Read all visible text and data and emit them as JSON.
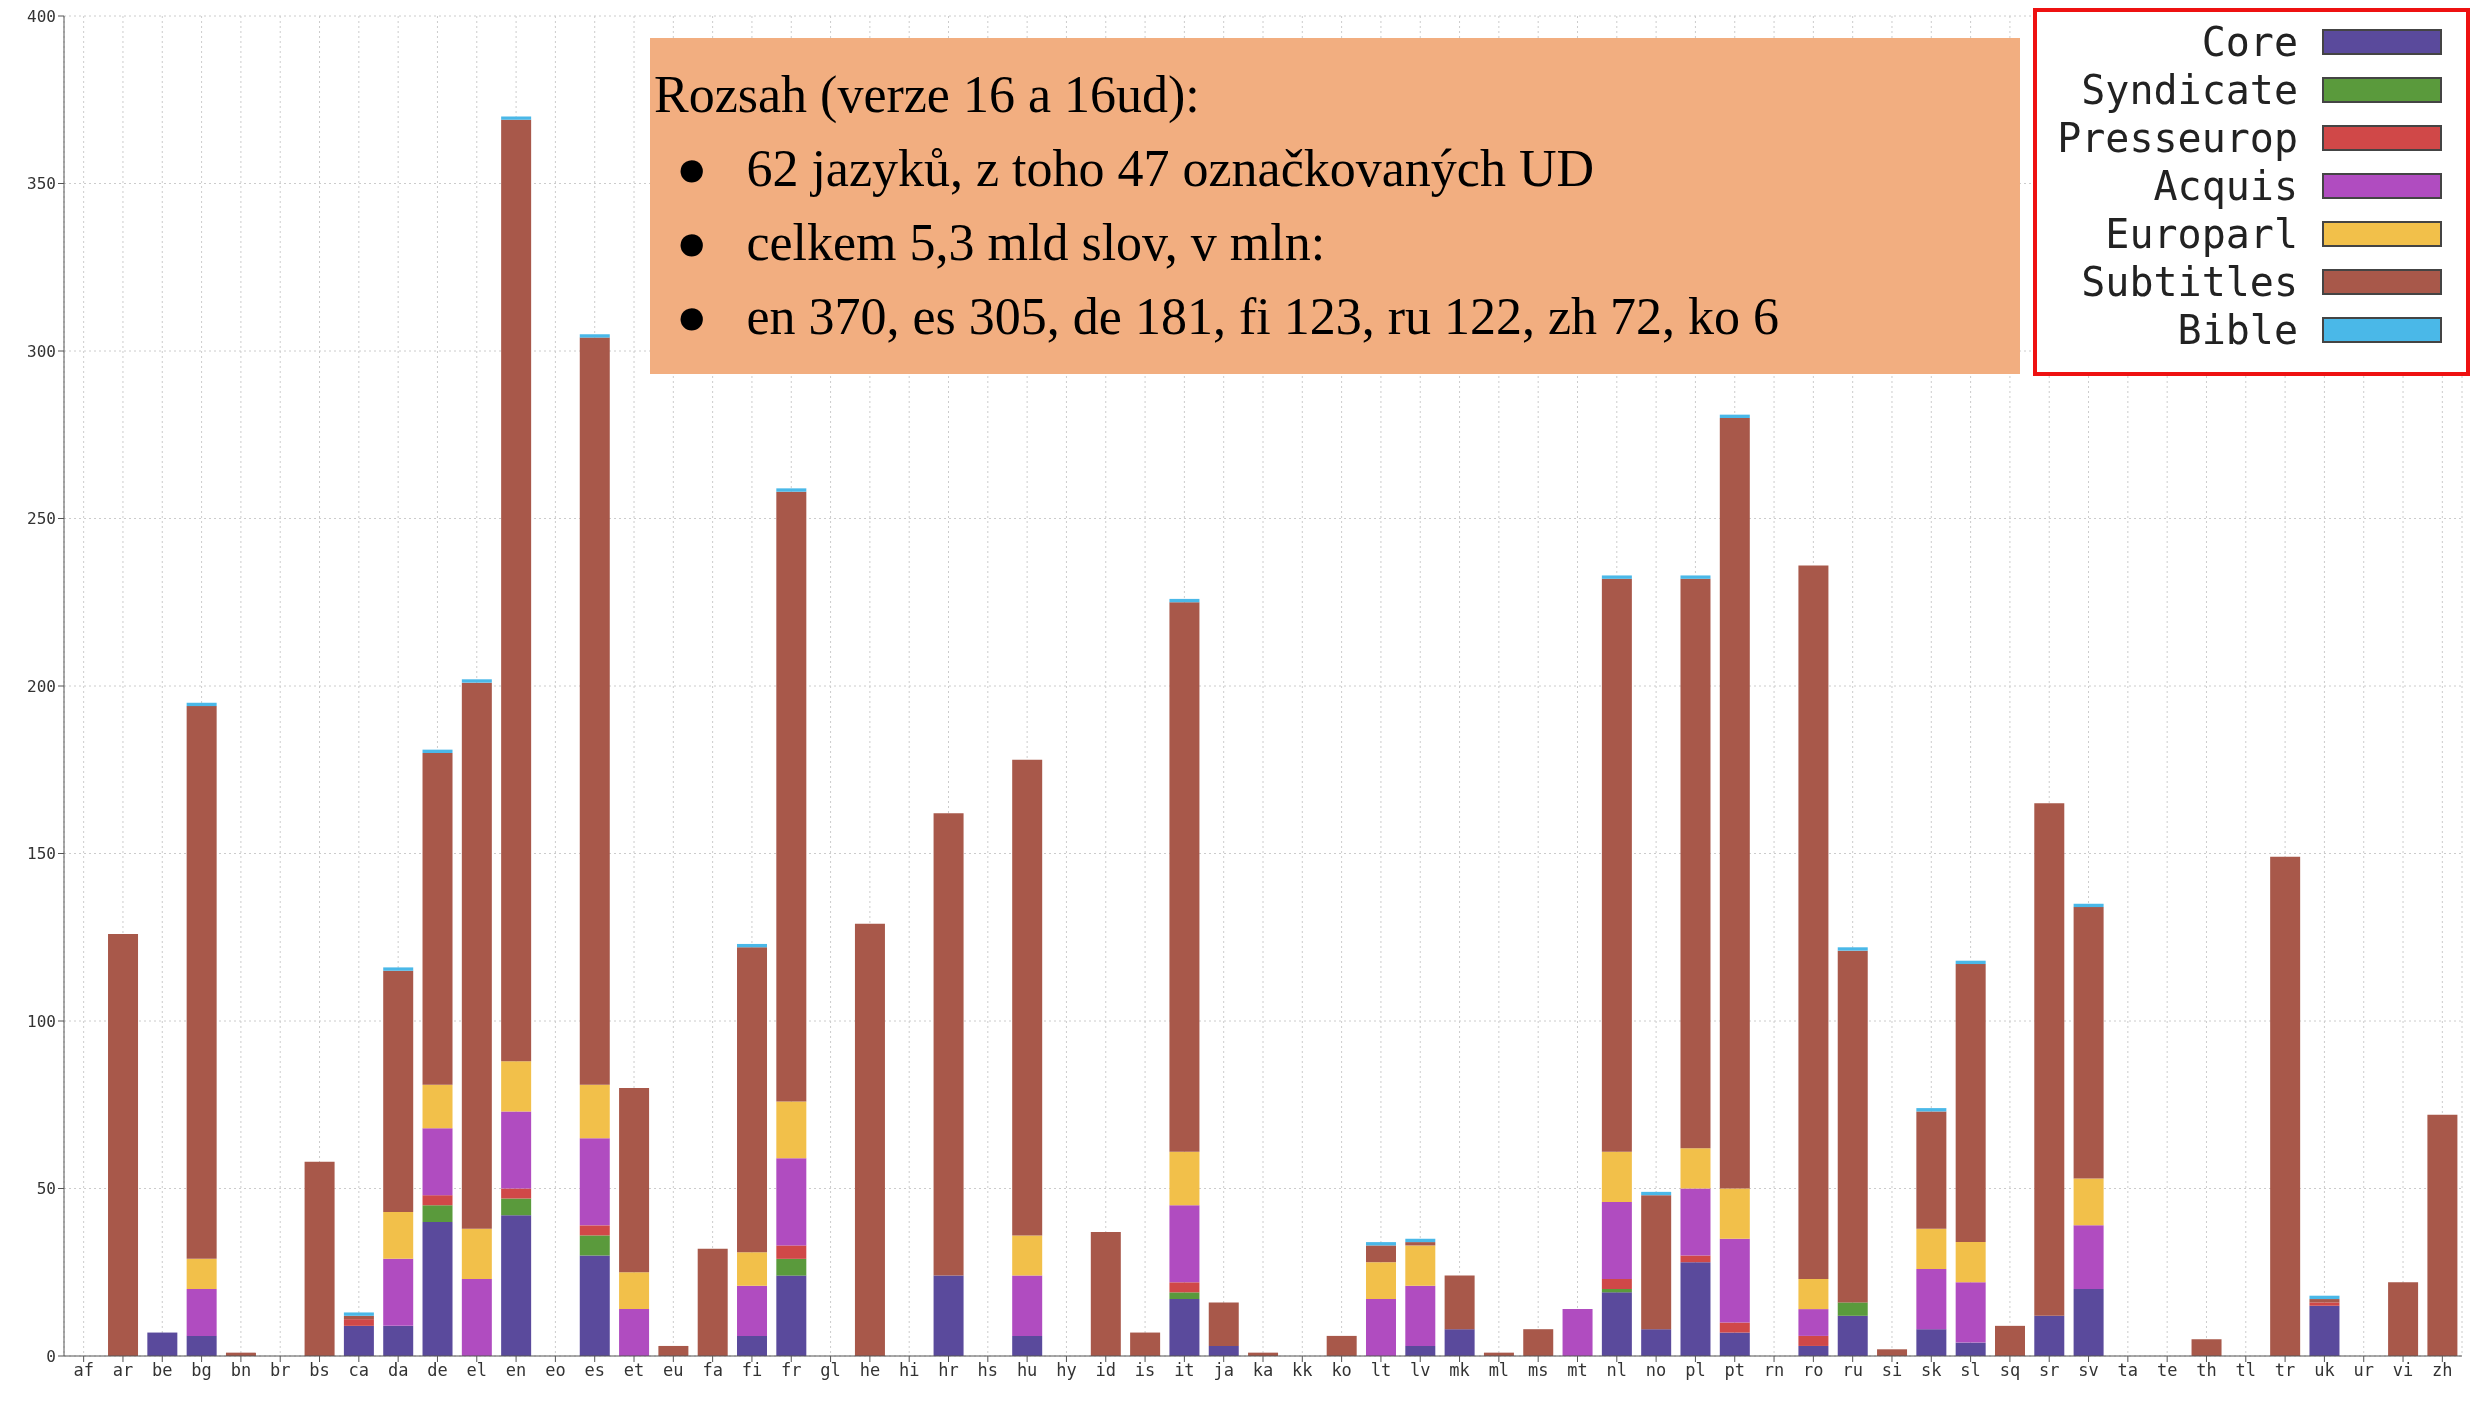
{
  "chart_data": {
    "type": "bar",
    "stacked": true,
    "categories": [
      "af",
      "ar",
      "be",
      "bg",
      "bn",
      "br",
      "bs",
      "ca",
      "da",
      "de",
      "el",
      "en",
      "eo",
      "es",
      "et",
      "eu",
      "fa",
      "fi",
      "fr",
      "gl",
      "he",
      "hi",
      "hr",
      "hs",
      "hu",
      "hy",
      "id",
      "is",
      "it",
      "ja",
      "ka",
      "kk",
      "ko",
      "lt",
      "lv",
      "mk",
      "ml",
      "ms",
      "mt",
      "nl",
      "no",
      "pl",
      "pt",
      "rn",
      "ro",
      "ru",
      "si",
      "sk",
      "sl",
      "sq",
      "sr",
      "sv",
      "ta",
      "te",
      "th",
      "tl",
      "tr",
      "uk",
      "ur",
      "vi",
      "zh"
    ],
    "series": [
      {
        "name": "Core",
        "color": "#5a4a9c",
        "values": [
          0,
          0,
          7,
          6,
          0,
          0,
          0,
          9,
          9,
          40,
          0,
          42,
          0,
          30,
          0,
          0,
          0,
          6,
          24,
          0,
          0,
          0,
          24,
          0,
          6,
          0,
          0,
          0,
          17,
          3,
          0,
          0,
          0,
          0,
          3,
          8,
          0,
          0,
          0,
          19,
          8,
          28,
          7,
          0,
          3,
          12,
          0,
          8,
          4,
          0,
          12,
          20,
          0,
          0,
          0,
          0,
          0,
          15,
          0,
          0,
          0
        ]
      },
      {
        "name": "Syndicate",
        "color": "#5a9a3c",
        "values": [
          0,
          0,
          0,
          0,
          0,
          0,
          0,
          0,
          0,
          5,
          0,
          5,
          0,
          6,
          0,
          0,
          0,
          0,
          5,
          0,
          0,
          0,
          0,
          0,
          0,
          0,
          0,
          0,
          2,
          0,
          0,
          0,
          0,
          0,
          0,
          0,
          0,
          0,
          0,
          1,
          0,
          0,
          0,
          0,
          0,
          4,
          0,
          0,
          0,
          0,
          0,
          0,
          0,
          0,
          0,
          0,
          0,
          0,
          0,
          0,
          0
        ]
      },
      {
        "name": "Presseurop",
        "color": "#d04848",
        "values": [
          0,
          0,
          0,
          0,
          0,
          0,
          0,
          2,
          0,
          3,
          0,
          3,
          0,
          3,
          0,
          0,
          0,
          0,
          4,
          0,
          0,
          0,
          0,
          0,
          0,
          0,
          0,
          0,
          3,
          0,
          0,
          0,
          0,
          0,
          0,
          0,
          0,
          0,
          0,
          3,
          0,
          2,
          3,
          0,
          3,
          0,
          0,
          0,
          0,
          0,
          0,
          0,
          0,
          0,
          0,
          0,
          0,
          1,
          0,
          0,
          0
        ]
      },
      {
        "name": "Acquis",
        "color": "#b04cc0",
        "values": [
          0,
          0,
          0,
          14,
          0,
          0,
          0,
          0,
          20,
          20,
          23,
          23,
          0,
          26,
          14,
          0,
          0,
          15,
          26,
          0,
          0,
          0,
          0,
          0,
          18,
          0,
          0,
          0,
          23,
          0,
          0,
          0,
          0,
          17,
          18,
          0,
          0,
          0,
          14,
          23,
          0,
          20,
          25,
          0,
          8,
          0,
          0,
          18,
          18,
          0,
          0,
          19,
          0,
          0,
          0,
          0,
          0,
          0,
          0,
          0,
          0
        ]
      },
      {
        "name": "Europarl",
        "color": "#f2c04a",
        "values": [
          0,
          0,
          0,
          9,
          0,
          0,
          0,
          0,
          14,
          13,
          15,
          15,
          0,
          16,
          11,
          0,
          0,
          10,
          17,
          0,
          0,
          0,
          0,
          0,
          12,
          0,
          0,
          0,
          16,
          0,
          0,
          0,
          0,
          11,
          12,
          0,
          0,
          0,
          0,
          15,
          0,
          12,
          15,
          0,
          9,
          0,
          0,
          12,
          12,
          0,
          0,
          14,
          0,
          0,
          0,
          0,
          0,
          0,
          0,
          0,
          0
        ]
      },
      {
        "name": "Subtitles",
        "color": "#a8584a",
        "values": [
          0,
          126,
          0,
          165,
          1,
          0,
          58,
          1,
          72,
          99,
          163,
          281,
          0,
          223,
          55,
          3,
          32,
          91,
          182,
          0,
          129,
          0,
          138,
          0,
          142,
          0,
          37,
          7,
          164,
          13,
          1,
          0,
          6,
          5,
          1,
          16,
          1,
          8,
          0,
          171,
          40,
          170,
          230,
          0,
          213,
          105,
          2,
          35,
          83,
          9,
          153,
          81,
          0,
          0,
          5,
          0,
          149,
          1,
          0,
          22,
          72
        ]
      },
      {
        "name": "Bible",
        "color": "#4ab8e8",
        "values": [
          0,
          0,
          0,
          1,
          0,
          0,
          0,
          1,
          1,
          1,
          1,
          1,
          0,
          1,
          0,
          0,
          0,
          1,
          1,
          0,
          0,
          0,
          0,
          0,
          0,
          0,
          0,
          0,
          1,
          0,
          0,
          0,
          0,
          1,
          1,
          0,
          0,
          0,
          0,
          1,
          1,
          1,
          1,
          0,
          0,
          1,
          0,
          1,
          1,
          0,
          0,
          1,
          0,
          0,
          0,
          0,
          0,
          1,
          0,
          0,
          0
        ]
      }
    ],
    "ylim": [
      0,
      400
    ],
    "yticks": [
      0,
      50,
      100,
      150,
      200,
      250,
      300,
      350,
      400
    ],
    "grid": true,
    "legend": "top right",
    "annotations": [
      "Rozsah (verze 16 a 16ud):",
      "●   62 jazyků, z toho 47 označkovaných UD",
      "●   celkem 5,3 mld slov, v mln:",
      "●   en 370, es 305, de 181, fi 123, ru 122, zh 72, ko 6"
    ]
  }
}
